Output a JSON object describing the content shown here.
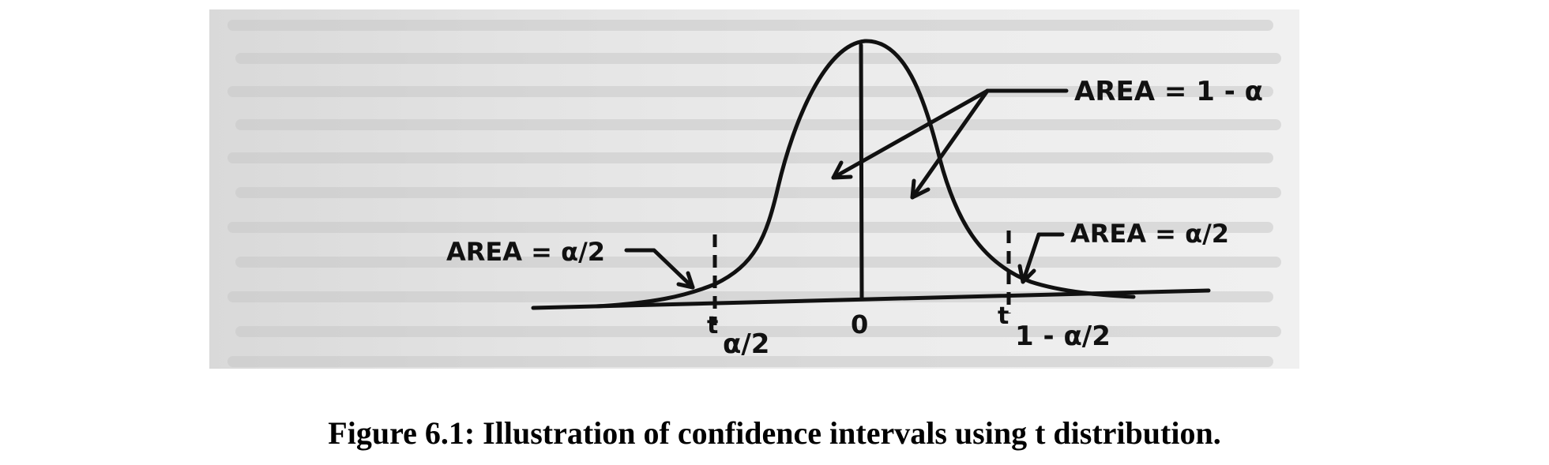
{
  "figure": {
    "labels": {
      "center_area": "AREA = 1 - α",
      "left_area": "AREA = α/2",
      "right_area": "AREA = α/2",
      "origin": "0",
      "left_t": "t",
      "left_t_sub": "α/2",
      "right_t": "t",
      "right_t_sub": "1 - α/2"
    }
  },
  "caption": "Figure 6.1:  Illustration of confidence intervals using t distribution."
}
